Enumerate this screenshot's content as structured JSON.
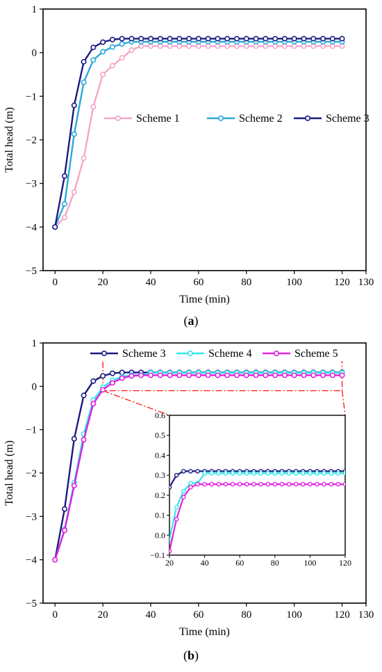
{
  "chart_data": [
    {
      "type": "line",
      "panel_label": "(a)",
      "panel_letter": "a",
      "xlabel": "Time (min)",
      "ylabel": "Total head (m)",
      "xlim": [
        -5,
        130
      ],
      "ylim": [
        -5,
        1
      ],
      "xticks": [
        0,
        20,
        40,
        60,
        80,
        100,
        120,
        130
      ],
      "yticks": [
        -5,
        -4,
        -3,
        -2,
        -1,
        0,
        1
      ],
      "legend_position": "middle-right",
      "series": [
        {
          "name": "Scheme 1",
          "color": "#f4a6c8",
          "marker": "circle-open",
          "x": [
            0,
            4,
            8,
            12,
            16,
            20,
            24,
            28,
            32,
            36,
            40,
            44,
            48,
            52,
            56,
            60,
            64,
            68,
            72,
            76,
            80,
            84,
            88,
            92,
            96,
            100,
            104,
            108,
            112,
            116,
            120
          ],
          "y": [
            -4.0,
            -3.78,
            -3.2,
            -2.42,
            -1.24,
            -0.5,
            -0.3,
            -0.12,
            0.06,
            0.15,
            0.15,
            0.15,
            0.15,
            0.15,
            0.15,
            0.15,
            0.15,
            0.15,
            0.15,
            0.15,
            0.15,
            0.15,
            0.15,
            0.15,
            0.15,
            0.15,
            0.15,
            0.15,
            0.15,
            0.15,
            0.15
          ]
        },
        {
          "name": "Scheme 2",
          "color": "#29a9d8",
          "marker": "circle-open",
          "x": [
            0,
            4,
            8,
            12,
            16,
            20,
            24,
            28,
            32,
            36,
            40,
            44,
            48,
            52,
            56,
            60,
            64,
            68,
            72,
            76,
            80,
            84,
            88,
            92,
            96,
            100,
            104,
            108,
            112,
            116,
            120
          ],
          "y": [
            -4.0,
            -3.47,
            -1.87,
            -0.68,
            -0.17,
            0.02,
            0.13,
            0.2,
            0.25,
            0.25,
            0.25,
            0.25,
            0.25,
            0.25,
            0.25,
            0.25,
            0.25,
            0.25,
            0.25,
            0.25,
            0.25,
            0.25,
            0.25,
            0.25,
            0.25,
            0.25,
            0.25,
            0.25,
            0.25,
            0.25,
            0.25
          ]
        },
        {
          "name": "Scheme 3",
          "color": "#1a1a80",
          "marker": "circle-open",
          "x": [
            0,
            4,
            8,
            12,
            16,
            20,
            24,
            28,
            32,
            36,
            40,
            44,
            48,
            52,
            56,
            60,
            64,
            68,
            72,
            76,
            80,
            84,
            88,
            92,
            96,
            100,
            104,
            108,
            112,
            116,
            120
          ],
          "y": [
            -4.0,
            -2.83,
            -1.21,
            -0.21,
            0.12,
            0.24,
            0.3,
            0.32,
            0.32,
            0.32,
            0.32,
            0.32,
            0.32,
            0.32,
            0.32,
            0.32,
            0.32,
            0.32,
            0.32,
            0.32,
            0.32,
            0.32,
            0.32,
            0.32,
            0.32,
            0.32,
            0.32,
            0.32,
            0.32,
            0.32,
            0.32
          ]
        }
      ]
    },
    {
      "type": "line",
      "panel_label": "(b)",
      "panel_letter": "b",
      "xlabel": "Time (min)",
      "ylabel": "Total head (m)",
      "xlim": [
        -5,
        130
      ],
      "ylim": [
        -5,
        1
      ],
      "xticks": [
        0,
        20,
        40,
        60,
        80,
        100,
        120,
        130
      ],
      "yticks": [
        -5,
        -4,
        -3,
        -2,
        -1,
        0,
        1
      ],
      "legend_position": "top",
      "zoom_box": {
        "x": [
          20,
          120
        ],
        "y": [
          -0.1,
          0.6
        ]
      },
      "series": [
        {
          "name": "Scheme 3",
          "color": "#1a1a80",
          "marker": "circle-open",
          "x": [
            0,
            4,
            8,
            12,
            16,
            20,
            24,
            28,
            32,
            36,
            40,
            44,
            48,
            52,
            56,
            60,
            64,
            68,
            72,
            76,
            80,
            84,
            88,
            92,
            96,
            100,
            104,
            108,
            112,
            116,
            120
          ],
          "y": [
            -4.0,
            -2.83,
            -1.21,
            -0.21,
            0.12,
            0.24,
            0.3,
            0.32,
            0.32,
            0.32,
            0.32,
            0.32,
            0.32,
            0.32,
            0.32,
            0.32,
            0.32,
            0.32,
            0.32,
            0.32,
            0.32,
            0.32,
            0.32,
            0.32,
            0.32,
            0.32,
            0.32,
            0.32,
            0.32,
            0.32,
            0.32
          ]
        },
        {
          "name": "Scheme 4",
          "color": "#2de8e8",
          "marker": "circle-open",
          "x": [
            0,
            4,
            8,
            12,
            16,
            20,
            24,
            28,
            32,
            36,
            40,
            44,
            48,
            52,
            56,
            60,
            64,
            68,
            72,
            76,
            80,
            84,
            88,
            92,
            96,
            100,
            104,
            108,
            112,
            116,
            120
          ],
          "y": [
            -4.0,
            -3.3,
            -2.22,
            -1.1,
            -0.32,
            -0.02,
            0.14,
            0.22,
            0.26,
            0.26,
            0.31,
            0.31,
            0.31,
            0.31,
            0.31,
            0.31,
            0.31,
            0.31,
            0.31,
            0.31,
            0.31,
            0.31,
            0.31,
            0.31,
            0.31,
            0.31,
            0.31,
            0.31,
            0.31,
            0.31,
            0.31
          ]
        },
        {
          "name": "Scheme 5",
          "color": "#e020e0",
          "marker": "circle-open",
          "x": [
            0,
            4,
            8,
            12,
            16,
            20,
            24,
            28,
            32,
            36,
            40,
            44,
            48,
            52,
            56,
            60,
            64,
            68,
            72,
            76,
            80,
            84,
            88,
            92,
            96,
            100,
            104,
            108,
            112,
            116,
            120
          ],
          "y": [
            -4.0,
            -3.32,
            -2.29,
            -1.23,
            -0.4,
            -0.08,
            0.08,
            0.19,
            0.24,
            0.255,
            0.255,
            0.255,
            0.255,
            0.255,
            0.255,
            0.255,
            0.255,
            0.255,
            0.255,
            0.255,
            0.255,
            0.255,
            0.255,
            0.255,
            0.255,
            0.255,
            0.255,
            0.255,
            0.255,
            0.255,
            0.255
          ]
        }
      ],
      "inset": {
        "xlim": [
          20,
          120
        ],
        "ylim": [
          -0.1,
          0.6
        ],
        "xticks": [
          20,
          40,
          60,
          80,
          100,
          120
        ],
        "yticks": [
          -0.1,
          0.0,
          0.1,
          0.2,
          0.3,
          0.4,
          0.5,
          0.6
        ]
      }
    }
  ]
}
